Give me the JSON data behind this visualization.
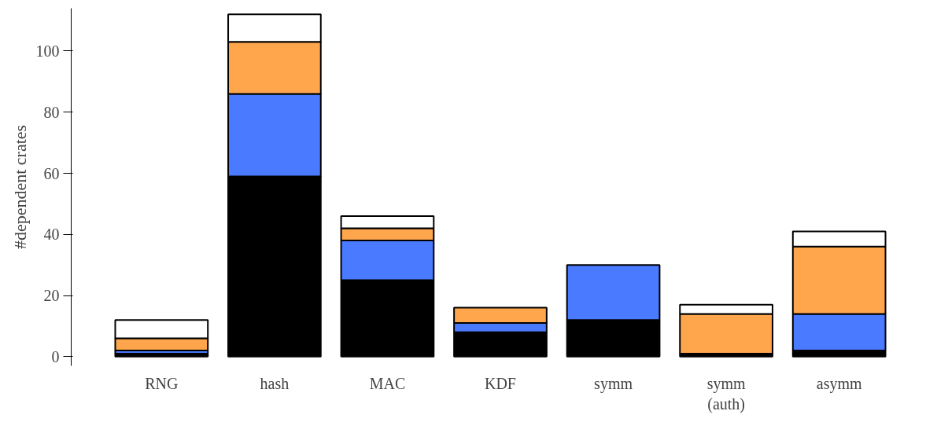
{
  "chart_data": {
    "type": "bar",
    "stacked": true,
    "ylabel": "#dependent crates",
    "categories": [
      "RNG",
      "hash",
      "MAC",
      "KDF",
      "symm",
      "symm\n(auth)",
      "asymm"
    ],
    "series": [
      {
        "color": "#000000",
        "values": [
          1,
          59,
          25,
          8,
          12,
          1,
          2
        ]
      },
      {
        "color": "#4a7aff",
        "values": [
          1,
          27,
          13,
          3,
          18,
          0,
          12
        ]
      },
      {
        "color": "#ffa64d",
        "values": [
          4,
          17,
          4,
          5,
          0,
          13,
          22
        ]
      },
      {
        "color": "#ffffff",
        "values": [
          6,
          9,
          4,
          0,
          0,
          3,
          5
        ]
      }
    ],
    "ylim": [
      -3,
      114
    ],
    "yticks": [
      0,
      20,
      40,
      60,
      80,
      100
    ],
    "grid": false
  }
}
